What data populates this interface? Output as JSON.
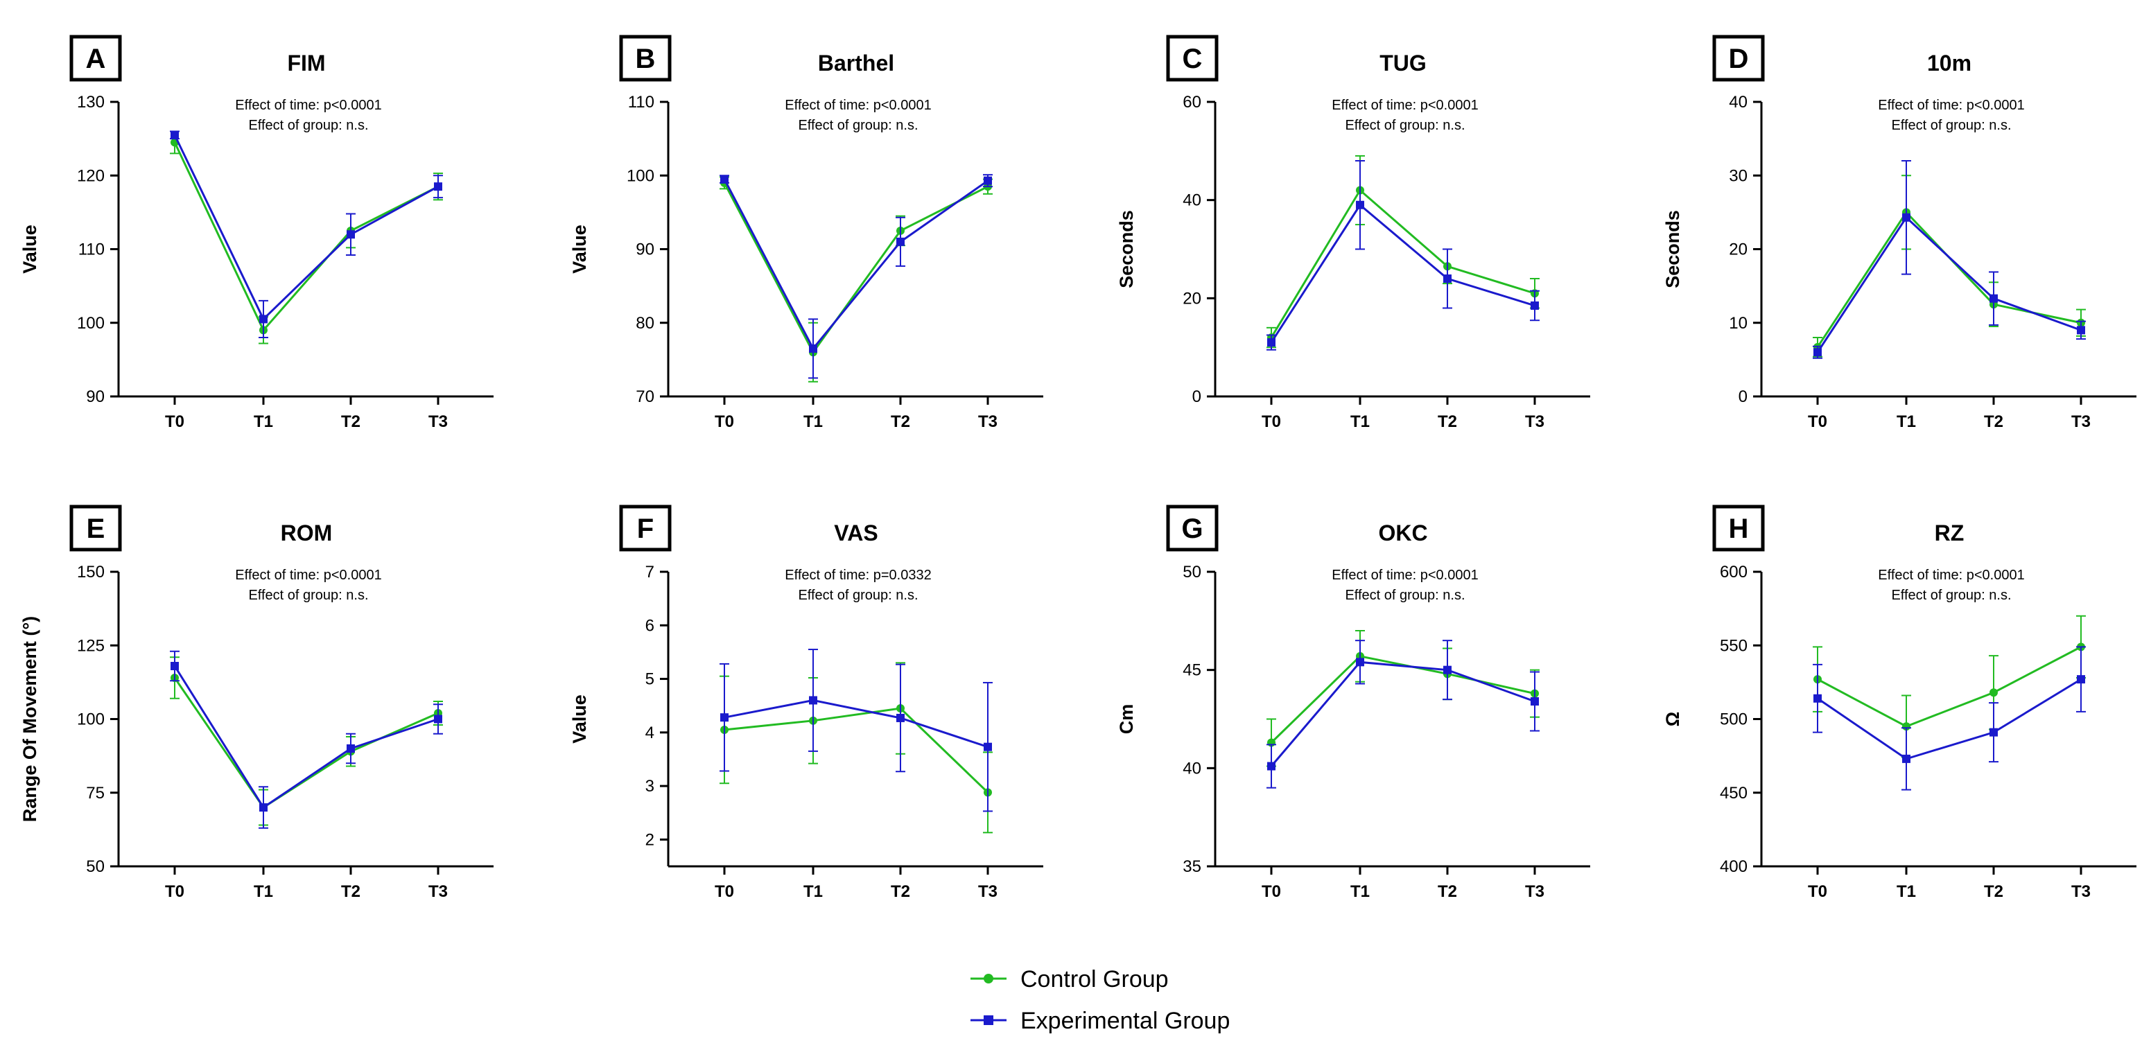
{
  "colors": {
    "control": "#22bb22",
    "experimental": "#1a1acc"
  },
  "legend": [
    {
      "name": "Control Group",
      "color": "#22bb22",
      "marker": "circle"
    },
    {
      "name": "Experimental Group",
      "color": "#1a1acc",
      "marker": "square"
    }
  ],
  "chart_data": [
    {
      "panel": "A",
      "type": "line",
      "title": "FIM",
      "ylabel": "Value",
      "categories": [
        "T0",
        "T1",
        "T2",
        "T3"
      ],
      "ylim": [
        90,
        130
      ],
      "yticks": [
        90,
        100,
        110,
        120,
        130
      ],
      "annotations": [
        "Effect of time: p<0.0001",
        "Effect of group: n.s."
      ],
      "series": [
        {
          "name": "Control Group",
          "values": [
            124.5,
            99,
            112.5,
            118.5
          ],
          "errors": [
            1.5,
            1.8,
            2.3,
            1.8
          ]
        },
        {
          "name": "Experimental Group",
          "values": [
            125.5,
            100.5,
            112,
            118.5
          ],
          "errors": [
            0.5,
            2.5,
            2.8,
            1.5
          ]
        }
      ]
    },
    {
      "panel": "B",
      "type": "line",
      "title": "Barthel",
      "ylabel": "Value",
      "categories": [
        "T0",
        "T1",
        "T2",
        "T3"
      ],
      "ylim": [
        70,
        110
      ],
      "yticks": [
        70,
        80,
        90,
        100,
        110
      ],
      "annotations": [
        "Effect of time: p<0.0001",
        "Effect of group: n.s."
      ],
      "series": [
        {
          "name": "Control Group",
          "values": [
            99,
            76,
            92.5,
            98.5
          ],
          "errors": [
            0.8,
            4,
            2,
            1
          ]
        },
        {
          "name": "Experimental Group",
          "values": [
            99.5,
            76.5,
            91,
            99.3
          ],
          "errors": [
            0.5,
            4,
            3.3,
            0.8
          ]
        }
      ]
    },
    {
      "panel": "C",
      "type": "line",
      "title": "TUG",
      "ylabel": "Seconds",
      "categories": [
        "T0",
        "T1",
        "T2",
        "T3"
      ],
      "ylim": [
        0,
        60
      ],
      "yticks": [
        0,
        20,
        40,
        60
      ],
      "annotations": [
        "Effect of time: p<0.0001",
        "Effect of group: n.s."
      ],
      "series": [
        {
          "name": "Control Group",
          "values": [
            12,
            42,
            26.5,
            21
          ],
          "errors": [
            2,
            7,
            3.5,
            3
          ]
        },
        {
          "name": "Experimental Group",
          "values": [
            11,
            39,
            24,
            18.5
          ],
          "errors": [
            1.5,
            9,
            6,
            3
          ]
        }
      ]
    },
    {
      "panel": "D",
      "type": "line",
      "title": "10m",
      "ylabel": "Seconds",
      "categories": [
        "T0",
        "T1",
        "T2",
        "T3"
      ],
      "ylim": [
        0,
        40
      ],
      "yticks": [
        0,
        10,
        20,
        30,
        40
      ],
      "annotations": [
        "Effect of time: p<0.0001",
        "Effect of group: n.s."
      ],
      "series": [
        {
          "name": "Control Group",
          "values": [
            6.7,
            25,
            12.5,
            10
          ],
          "errors": [
            1.3,
            5,
            3,
            1.8
          ]
        },
        {
          "name": "Experimental Group",
          "values": [
            6,
            24.3,
            13.3,
            9
          ],
          "errors": [
            0.8,
            7.7,
            3.6,
            1.2
          ]
        }
      ]
    },
    {
      "panel": "E",
      "type": "line",
      "title": "ROM",
      "ylabel": "Range Of Movement (°)",
      "categories": [
        "T0",
        "T1",
        "T2",
        "T3"
      ],
      "ylim": [
        50,
        150
      ],
      "yticks": [
        50,
        75,
        100,
        125,
        150
      ],
      "annotations": [
        "Effect of time: p<0.0001",
        "Effect of group: n.s."
      ],
      "series": [
        {
          "name": "Control Group",
          "values": [
            114,
            70,
            89,
            102
          ],
          "errors": [
            7,
            6,
            5,
            4
          ]
        },
        {
          "name": "Experimental Group",
          "values": [
            118,
            70,
            90,
            100
          ],
          "errors": [
            5,
            7,
            5,
            5
          ]
        }
      ]
    },
    {
      "panel": "F",
      "type": "line",
      "title": "VAS",
      "ylabel": "Value",
      "categories": [
        "T0",
        "T1",
        "T2",
        "T3"
      ],
      "ylim": [
        1.5,
        7
      ],
      "yticks": [
        2,
        3,
        4,
        5,
        6,
        7
      ],
      "annotations": [
        "Effect of time: p=0.0332",
        "Effect of group: n.s."
      ],
      "series": [
        {
          "name": "Control Group",
          "values": [
            4.05,
            4.22,
            4.45,
            2.88
          ],
          "errors": [
            1.0,
            0.8,
            0.85,
            0.75
          ]
        },
        {
          "name": "Experimental Group",
          "values": [
            4.28,
            4.6,
            4.27,
            3.73
          ],
          "errors": [
            1.0,
            0.95,
            1.0,
            1.2
          ]
        }
      ]
    },
    {
      "panel": "G",
      "type": "line",
      "title": "OKC",
      "ylabel": "Cm",
      "categories": [
        "T0",
        "T1",
        "T2",
        "T3"
      ],
      "ylim": [
        35,
        50
      ],
      "yticks": [
        35,
        40,
        45,
        50
      ],
      "annotations": [
        "Effect of time: p<0.0001",
        "Effect of group: n.s."
      ],
      "series": [
        {
          "name": "Control Group",
          "values": [
            41.3,
            45.7,
            44.8,
            43.8
          ],
          "errors": [
            1.2,
            1.3,
            1.3,
            1.2
          ]
        },
        {
          "name": "Experimental Group",
          "values": [
            40.1,
            45.4,
            45,
            43.4
          ],
          "errors": [
            1.1,
            1.1,
            1.5,
            1.5
          ]
        }
      ]
    },
    {
      "panel": "H",
      "type": "line",
      "title": "RZ",
      "ylabel": "Ω",
      "categories": [
        "T0",
        "T1",
        "T2",
        "T3"
      ],
      "ylim": [
        400,
        600
      ],
      "yticks": [
        400,
        450,
        500,
        550,
        600
      ],
      "annotations": [
        "Effect of time: p<0.0001",
        "Effect of group: n.s."
      ],
      "series": [
        {
          "name": "Control Group",
          "values": [
            527,
            495,
            518,
            549
          ],
          "errors": [
            22,
            21,
            25,
            21
          ]
        },
        {
          "name": "Experimental Group",
          "values": [
            514,
            473,
            491,
            527
          ],
          "errors": [
            23,
            21,
            20,
            22
          ]
        }
      ]
    }
  ]
}
